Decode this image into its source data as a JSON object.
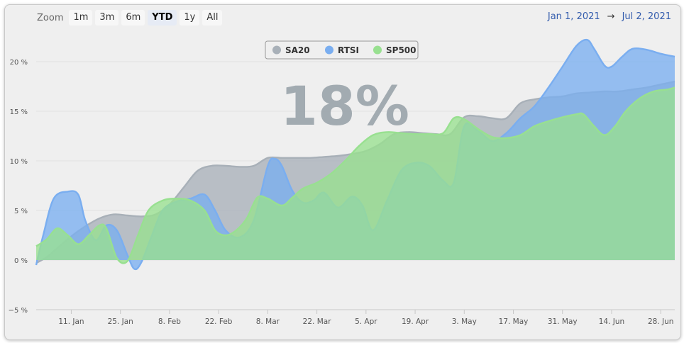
{
  "toolbar": {
    "zoom_label": "Zoom",
    "buttons": [
      "1m",
      "3m",
      "6m",
      "YTD",
      "1y",
      "All"
    ],
    "active": "YTD"
  },
  "range": {
    "from": "Jan 1, 2021",
    "arrow": "→",
    "to": "Jul 2, 2021"
  },
  "big_value": "18%",
  "chart_data": {
    "type": "area",
    "title": "",
    "xlabel": "",
    "ylabel": "",
    "ylim": [
      -5,
      23
    ],
    "x_range_days": [
      0,
      182
    ],
    "yticks": [
      -5,
      0,
      5,
      10,
      15,
      20
    ],
    "ytick_labels": [
      "−5 %",
      "0 %",
      "5 %",
      "10 %",
      "15 %",
      "20 %"
    ],
    "xticks": [
      {
        "day": 10,
        "label": "11. Jan"
      },
      {
        "day": 24,
        "label": "25. Jan"
      },
      {
        "day": 38,
        "label": "8. Feb"
      },
      {
        "day": 52,
        "label": "22. Feb"
      },
      {
        "day": 66,
        "label": "8. Mar"
      },
      {
        "day": 80,
        "label": "22. Mar"
      },
      {
        "day": 94,
        "label": "5. Apr"
      },
      {
        "day": 108,
        "label": "19. Apr"
      },
      {
        "day": 122,
        "label": "3. May"
      },
      {
        "day": 136,
        "label": "17. May"
      },
      {
        "day": 150,
        "label": "31. May"
      },
      {
        "day": 164,
        "label": "14. Jun"
      },
      {
        "day": 178,
        "label": "28. Jun"
      }
    ],
    "legend": [
      "SA20",
      "RTSI",
      "SP500"
    ],
    "legend_position": "top-center",
    "series": [
      {
        "name": "SA20",
        "color": "#a8b0b8",
        "points": [
          [
            0,
            -0.3
          ],
          [
            3,
            0.3
          ],
          [
            6,
            1.2
          ],
          [
            10,
            2.4
          ],
          [
            14,
            3.4
          ],
          [
            18,
            4.2
          ],
          [
            22,
            4.6
          ],
          [
            26,
            4.5
          ],
          [
            30,
            4.4
          ],
          [
            34,
            4.6
          ],
          [
            38,
            5.6
          ],
          [
            42,
            7.3
          ],
          [
            46,
            9.0
          ],
          [
            50,
            9.5
          ],
          [
            54,
            9.5
          ],
          [
            58,
            9.4
          ],
          [
            62,
            9.5
          ],
          [
            66,
            10.3
          ],
          [
            70,
            10.3
          ],
          [
            74,
            10.3
          ],
          [
            78,
            10.3
          ],
          [
            82,
            10.4
          ],
          [
            86,
            10.5
          ],
          [
            90,
            10.7
          ],
          [
            94,
            11.0
          ],
          [
            98,
            11.7
          ],
          [
            102,
            12.7
          ],
          [
            106,
            12.9
          ],
          [
            110,
            12.8
          ],
          [
            114,
            12.7
          ],
          [
            118,
            12.7
          ],
          [
            122,
            14.4
          ],
          [
            126,
            14.5
          ],
          [
            130,
            14.3
          ],
          [
            134,
            14.3
          ],
          [
            138,
            15.8
          ],
          [
            142,
            16.2
          ],
          [
            146,
            16.4
          ],
          [
            150,
            16.5
          ],
          [
            154,
            16.8
          ],
          [
            158,
            16.9
          ],
          [
            162,
            17.0
          ],
          [
            166,
            17.0
          ],
          [
            170,
            17.2
          ],
          [
            174,
            17.4
          ],
          [
            178,
            17.7
          ],
          [
            182,
            18.0
          ]
        ]
      },
      {
        "name": "RTSI",
        "color": "#7aaef0",
        "points": [
          [
            0,
            -0.5
          ],
          [
            2,
            2.5
          ],
          [
            5,
            6.2
          ],
          [
            9,
            6.9
          ],
          [
            12,
            6.6
          ],
          [
            14,
            4.0
          ],
          [
            17,
            2.0
          ],
          [
            20,
            3.5
          ],
          [
            23,
            3.0
          ],
          [
            26,
            0.5
          ],
          [
            28,
            -0.9
          ],
          [
            30,
            -0.2
          ],
          [
            33,
            2.5
          ],
          [
            36,
            5.0
          ],
          [
            40,
            5.9
          ],
          [
            44,
            6.2
          ],
          [
            48,
            6.6
          ],
          [
            51,
            5.0
          ],
          [
            54,
            3.0
          ],
          [
            58,
            2.3
          ],
          [
            62,
            4.0
          ],
          [
            66,
            9.5
          ],
          [
            68,
            10.2
          ],
          [
            70,
            9.5
          ],
          [
            73,
            7.0
          ],
          [
            76,
            5.8
          ],
          [
            79,
            6.0
          ],
          [
            82,
            6.8
          ],
          [
            86,
            5.3
          ],
          [
            90,
            6.4
          ],
          [
            93,
            5.5
          ],
          [
            96,
            3.0
          ],
          [
            100,
            6.0
          ],
          [
            104,
            9.0
          ],
          [
            108,
            9.8
          ],
          [
            112,
            9.5
          ],
          [
            116,
            8.0
          ],
          [
            119,
            7.8
          ],
          [
            122,
            13.5
          ],
          [
            126,
            13.0
          ],
          [
            130,
            12.0
          ],
          [
            134,
            12.8
          ],
          [
            138,
            14.3
          ],
          [
            142,
            15.5
          ],
          [
            146,
            17.4
          ],
          [
            150,
            19.5
          ],
          [
            154,
            21.6
          ],
          [
            157,
            22.2
          ],
          [
            159,
            21.3
          ],
          [
            162,
            19.6
          ],
          [
            164,
            19.5
          ],
          [
            167,
            20.5
          ],
          [
            170,
            21.3
          ],
          [
            174,
            21.2
          ],
          [
            178,
            20.8
          ],
          [
            182,
            20.5
          ]
        ]
      },
      {
        "name": "SP500",
        "color": "#98e090",
        "points": [
          [
            0,
            1.4
          ],
          [
            3,
            2.1
          ],
          [
            6,
            3.2
          ],
          [
            9,
            2.5
          ],
          [
            12,
            1.6
          ],
          [
            15,
            2.5
          ],
          [
            18,
            3.5
          ],
          [
            20,
            3.2
          ],
          [
            23,
            0.2
          ],
          [
            26,
            -0.1
          ],
          [
            29,
            2.5
          ],
          [
            32,
            5.0
          ],
          [
            36,
            6.0
          ],
          [
            40,
            6.2
          ],
          [
            44,
            6.0
          ],
          [
            48,
            5.0
          ],
          [
            51,
            3.0
          ],
          [
            54,
            2.5
          ],
          [
            57,
            3.0
          ],
          [
            60,
            4.2
          ],
          [
            63,
            6.3
          ],
          [
            66,
            6.2
          ],
          [
            70,
            5.5
          ],
          [
            73,
            6.3
          ],
          [
            76,
            7.2
          ],
          [
            80,
            7.8
          ],
          [
            84,
            8.7
          ],
          [
            88,
            10.0
          ],
          [
            92,
            11.5
          ],
          [
            96,
            12.6
          ],
          [
            100,
            12.9
          ],
          [
            104,
            12.8
          ],
          [
            108,
            12.7
          ],
          [
            112,
            12.7
          ],
          [
            116,
            12.8
          ],
          [
            119,
            14.3
          ],
          [
            122,
            14.2
          ],
          [
            126,
            13.2
          ],
          [
            130,
            12.4
          ],
          [
            134,
            12.3
          ],
          [
            138,
            12.6
          ],
          [
            142,
            13.5
          ],
          [
            146,
            14.0
          ],
          [
            150,
            14.4
          ],
          [
            154,
            14.7
          ],
          [
            156,
            14.7
          ],
          [
            159,
            13.5
          ],
          [
            162,
            12.6
          ],
          [
            165,
            13.5
          ],
          [
            168,
            15.0
          ],
          [
            172,
            16.3
          ],
          [
            176,
            17.0
          ],
          [
            180,
            17.2
          ],
          [
            182,
            17.4
          ]
        ]
      }
    ]
  }
}
